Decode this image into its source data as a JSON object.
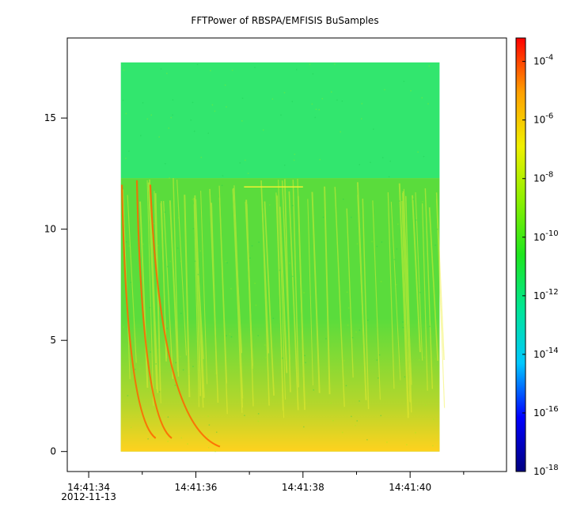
{
  "chart_data": {
    "type": "heatmap",
    "title": "FFTPower of RBSPA/EMFISIS  BuSamples",
    "x": {
      "tick_labels": [
        "14:41:34",
        "14:41:36",
        "14:41:38",
        "14:41:40"
      ],
      "tick_values": [
        34,
        36,
        38,
        40
      ],
      "date_label": "2012-11-13",
      "range": [
        33.6,
        41.8
      ],
      "data_range": [
        34.6,
        40.55
      ],
      "minor_tick_values": [
        35,
        37,
        39,
        41
      ]
    },
    "y": {
      "tick_labels": [
        "0",
        "5",
        "10",
        "15"
      ],
      "tick_values": [
        0,
        5,
        10,
        15
      ],
      "range": [
        -0.9,
        18.6
      ],
      "data_range": [
        0,
        17.5
      ],
      "band_boundary": 12.3
    },
    "colorbar": {
      "scale": "log",
      "range_exp": [
        -18,
        -3.2
      ],
      "tick_exps": [
        -4,
        -6,
        -8,
        -10,
        -12,
        -14,
        -16,
        -18
      ],
      "tick_labels": [
        {
          "base": "10",
          "exp": "-4"
        },
        {
          "base": "10",
          "exp": "-6"
        },
        {
          "base": "10",
          "exp": "-8"
        },
        {
          "base": "10",
          "exp": "-10"
        },
        {
          "base": "10",
          "exp": "-12"
        },
        {
          "base": "10",
          "exp": "-14"
        },
        {
          "base": "10",
          "exp": "-16"
        },
        {
          "base": "10",
          "exp": "-18"
        }
      ],
      "colors": [
        "#00007f",
        "#0000ff",
        "#00c8ff",
        "#00e696",
        "#1ee61e",
        "#8cf000",
        "#f0f000",
        "#ffa000",
        "#ff0000"
      ]
    },
    "features": {
      "upper_band_color": "#32e66e",
      "lower_band_color": "#5adc3c",
      "bottom_glow_color": "#ffd21e",
      "streak_color": "#f0f032",
      "whistler_color": "#ff6400",
      "whistlers": [
        {
          "x_top": 34.62,
          "y_top": 12.0,
          "x_bottom": 35.25,
          "y_bottom": 0.6
        },
        {
          "x_top": 34.9,
          "y_top": 12.2,
          "x_bottom": 35.55,
          "y_bottom": 0.6
        },
        {
          "x_top": 35.15,
          "y_top": 12.0,
          "x_bottom": 36.45,
          "y_bottom": 0.22
        }
      ],
      "horizontal_line": {
        "x_start": 36.9,
        "x_end": 38.0,
        "y": 11.9
      }
    }
  }
}
